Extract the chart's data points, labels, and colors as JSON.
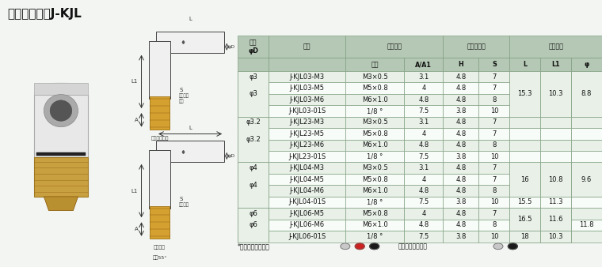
{
  "title": "外螺弯接头：J-KJL",
  "title_fontsize": 11,
  "bg_color": "#f2f5f2",
  "header_bg": "#b5c8b5",
  "row_bg_even": "#e8f0e8",
  "row_bg_odd": "#f8fcf8",
  "col_labels_row0": [
    "气管\nφD",
    "型号",
    "连接螺纹",
    "连接外六方",
    "接头长度"
  ],
  "col_labels_row1": [
    "",
    "",
    "规格",
    "A/A1",
    "H",
    "S",
    "L",
    "L1",
    "φ"
  ],
  "col_widths": [
    0.62,
    1.55,
    1.18,
    0.78,
    0.72,
    0.62,
    0.62,
    0.62,
    0.62
  ],
  "phi_groups": [
    [
      0,
      4,
      "φ3"
    ],
    [
      4,
      8,
      "φ3.2"
    ],
    [
      8,
      12,
      "φ4"
    ],
    [
      12,
      15,
      "φ6"
    ]
  ],
  "rows": [
    [
      "φ3",
      "J-KJL03-M3",
      "M3×0.5",
      "3.1",
      "4.8",
      "7",
      "",
      "",
      ""
    ],
    [
      "",
      "J-KJL03-M5",
      "M5×0.8",
      "4",
      "4.8",
      "7",
      "",
      "",
      ""
    ],
    [
      "",
      "J-KJL03-M6",
      "M6×1.0",
      "4.8",
      "4.8",
      "8",
      "",
      "",
      ""
    ],
    [
      "",
      "J-KJL03-01S",
      "1/8 °",
      "7.5",
      "3.8",
      "10",
      "",
      "",
      ""
    ],
    [
      "φ3.2",
      "J-KJL23-M3",
      "M3×0.5",
      "3.1",
      "4.8",
      "7",
      "",
      "",
      ""
    ],
    [
      "",
      "J-KJL23-M5",
      "M5×0.8",
      "4",
      "4.8",
      "7",
      "",
      "",
      ""
    ],
    [
      "",
      "J-KJL23-M6",
      "M6×1.0",
      "4.8",
      "4.8",
      "8",
      "",
      "",
      ""
    ],
    [
      "",
      "J-KJL23-01S",
      "1/8 °",
      "7.5",
      "3.8",
      "10",
      "",
      "",
      ""
    ],
    [
      "φ4",
      "J-KJL04-M3",
      "M3×0.5",
      "3.1",
      "4.8",
      "7",
      "",
      "",
      ""
    ],
    [
      "",
      "J-KJL04-M5",
      "M5×0.8",
      "4",
      "4.8",
      "7",
      "",
      "",
      ""
    ],
    [
      "",
      "J-KJL04-M6",
      "M6×1.0",
      "4.8",
      "4.8",
      "8",
      "",
      "",
      ""
    ],
    [
      "",
      "J-KJL04-01S",
      "1/8 °",
      "7.5",
      "3.8",
      "10",
      "",
      "",
      ""
    ],
    [
      "φ6",
      "J-KJL06-M5",
      "M5×0.8",
      "4",
      "4.8",
      "7",
      "",
      "",
      ""
    ],
    [
      "",
      "J-KJL06-M6",
      "M6×1.0",
      "4.8",
      "4.8",
      "8",
      "",
      "",
      ""
    ],
    [
      "",
      "J-KJL06-01S",
      "1/8 °",
      "7.5",
      "3.8",
      "10",
      "",
      "",
      ""
    ]
  ],
  "span_cells": [
    [
      0,
      4,
      6,
      "15.3"
    ],
    [
      0,
      4,
      7,
      "10.3"
    ],
    [
      0,
      4,
      8,
      "8.8"
    ],
    [
      8,
      11,
      6,
      "16"
    ],
    [
      8,
      11,
      7,
      "10.8"
    ],
    [
      8,
      11,
      8,
      "9.6"
    ],
    [
      11,
      12,
      6,
      "15.5"
    ],
    [
      11,
      12,
      7,
      "11.3"
    ],
    [
      12,
      14,
      6,
      "16.5"
    ],
    [
      12,
      14,
      7,
      "11.6"
    ],
    [
      13,
      14,
      8,
      "11.8"
    ],
    [
      14,
      15,
      6,
      "18"
    ],
    [
      14,
      15,
      7,
      "10.3"
    ]
  ],
  "footer_text1": "*脱离环可选颜色：",
  "footer_colors1": [
    "#c8c8c8",
    "#cc2222",
    "#1a1a1a"
  ],
  "footer_text2": "塑壳体可选颜色：",
  "footer_colors2": [
    "#c8c8c8",
    "#1a1a1a"
  ]
}
